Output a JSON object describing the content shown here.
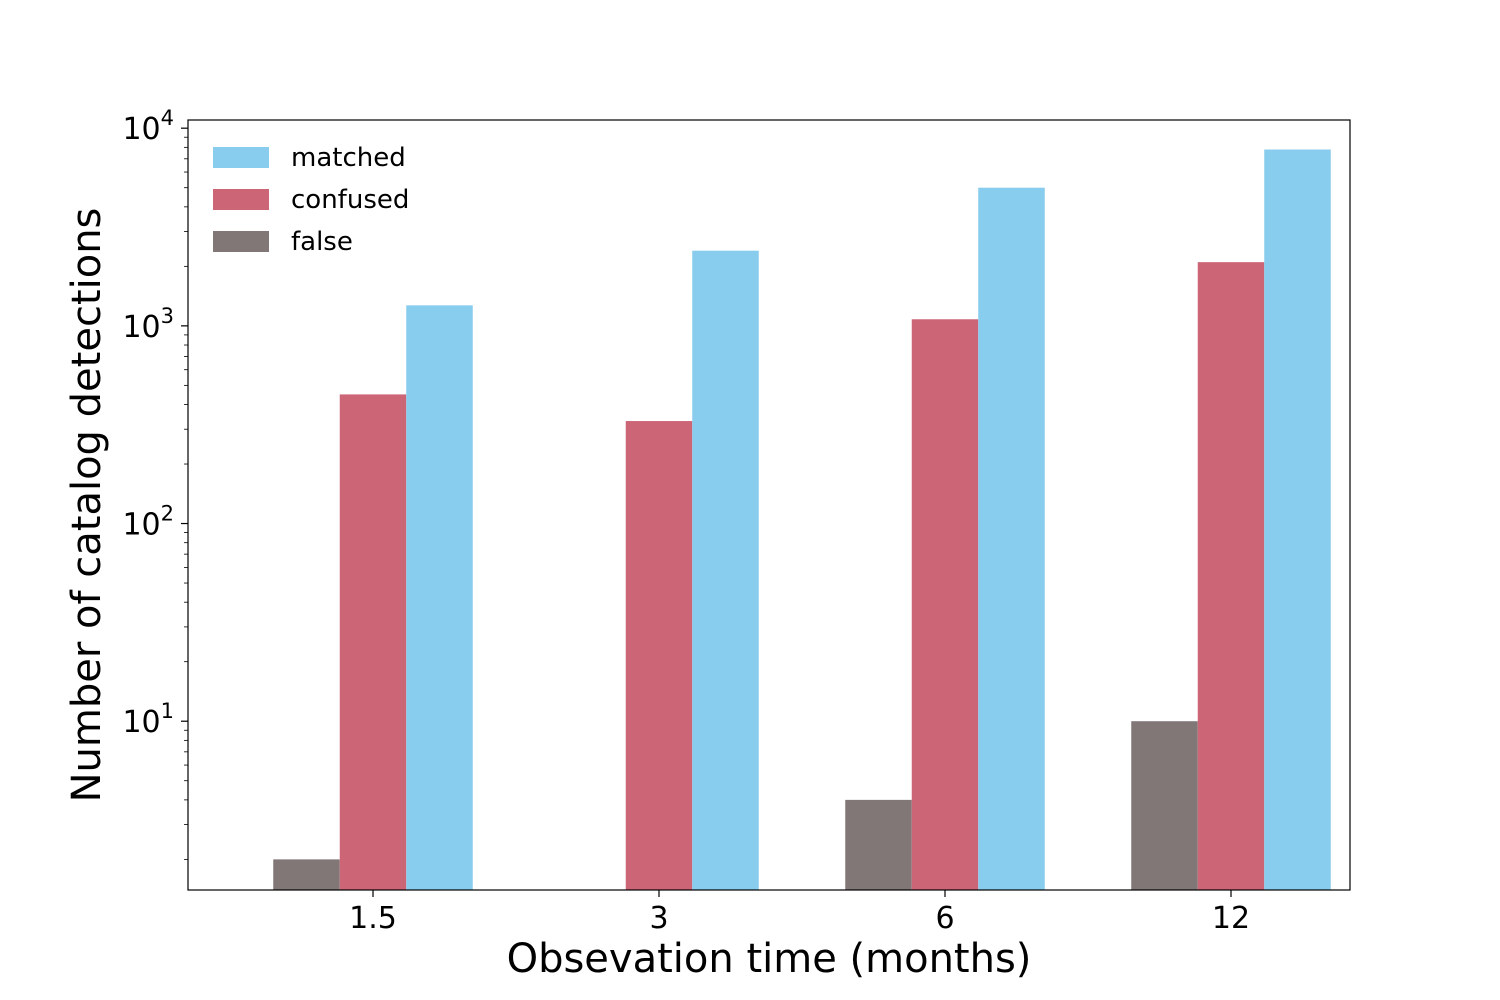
{
  "chart_data": {
    "type": "bar",
    "categories": [
      "1.5",
      "3",
      "6",
      "12"
    ],
    "series": [
      {
        "name": "false",
        "values": [
          2,
          null,
          4,
          10
        ],
        "color": "#827777"
      },
      {
        "name": "confused",
        "values": [
          450,
          330,
          1080,
          2100
        ],
        "color": "#cc6677"
      },
      {
        "name": "matched",
        "values": [
          1270,
          2400,
          5000,
          7800
        ],
        "color": "#88ccee"
      }
    ],
    "title": "",
    "xlabel": "Obsevation time (months)",
    "ylabel": "Number of catalog detections",
    "yscale": "log",
    "ylim": [
      1.4,
      11000
    ],
    "yticks": [
      {
        "value": 10,
        "base": "10",
        "exp": "1"
      },
      {
        "value": 100,
        "base": "10",
        "exp": "2"
      },
      {
        "value": 1000,
        "base": "10",
        "exp": "3"
      },
      {
        "value": 10000,
        "base": "10",
        "exp": "4"
      }
    ],
    "legend_position": "top-left",
    "grid": false
  }
}
